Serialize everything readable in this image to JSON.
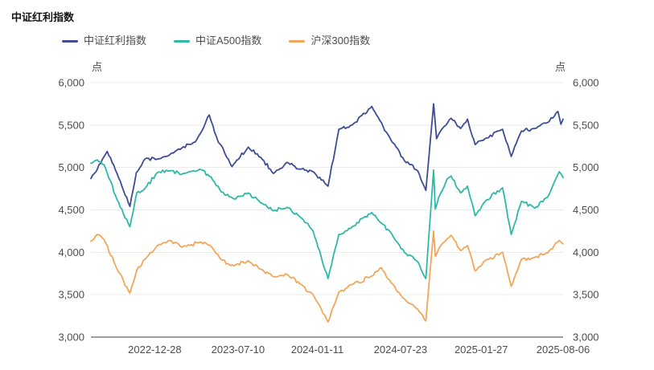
{
  "page": {
    "title": "中证红利指数"
  },
  "legend": {
    "items": [
      {
        "label": "中证红利指数",
        "color": "#3d4c94"
      },
      {
        "label": "中证A500指数",
        "color": "#2eb8a6"
      },
      {
        "label": "沪深300指数",
        "color": "#f2a65a"
      }
    ]
  },
  "axes": {
    "y_unit_left": "点",
    "y_unit_right": "点"
  },
  "chart_data": {
    "type": "line",
    "title": "中证红利指数",
    "grid": true,
    "legend_position": "top",
    "x_axis": {
      "range": [
        "2022-08-01",
        "2025-08-06"
      ],
      "ticks": [
        "2022-12-28",
        "2023-07-10",
        "2024-01-11",
        "2024-07-23",
        "2025-01-27",
        "2025-08-06"
      ]
    },
    "y_axis": {
      "unit": "点",
      "min": 3000,
      "max": 6000,
      "tick_step": 500,
      "tick_labels": [
        "6,000",
        "5,500",
        "5,000",
        "4,500",
        "4,000",
        "3,500",
        "3,000"
      ]
    },
    "series": [
      {
        "name": "中证红利指数",
        "color": "#3d4c94",
        "points": [
          [
            "2022-08-01",
            4870
          ],
          [
            "2022-09-08",
            5190
          ],
          [
            "2022-10-01",
            4930
          ],
          [
            "2022-10-31",
            4540
          ],
          [
            "2022-11-15",
            4940
          ],
          [
            "2022-12-05",
            5100
          ],
          [
            "2023-01-03",
            5100
          ],
          [
            "2023-02-01",
            5150
          ],
          [
            "2023-03-01",
            5230
          ],
          [
            "2023-04-01",
            5300
          ],
          [
            "2023-05-04",
            5620
          ],
          [
            "2023-05-25",
            5300
          ],
          [
            "2023-06-01",
            5260
          ],
          [
            "2023-06-26",
            5010
          ],
          [
            "2023-08-03",
            5240
          ],
          [
            "2023-09-01",
            5120
          ],
          [
            "2023-10-01",
            4930
          ],
          [
            "2023-11-01",
            5060
          ],
          [
            "2023-12-01",
            4980
          ],
          [
            "2024-01-01",
            4950
          ],
          [
            "2024-02-05",
            4780
          ],
          [
            "2024-03-01",
            5450
          ],
          [
            "2024-04-01",
            5500
          ],
          [
            "2024-05-17",
            5720
          ],
          [
            "2024-06-01",
            5590
          ],
          [
            "2024-07-01",
            5320
          ],
          [
            "2024-08-01",
            5080
          ],
          [
            "2024-09-01",
            4960
          ],
          [
            "2024-09-20",
            4730
          ],
          [
            "2024-10-08",
            5750
          ],
          [
            "2024-10-15",
            5340
          ],
          [
            "2024-11-01",
            5480
          ],
          [
            "2024-11-18",
            5580
          ],
          [
            "2024-12-10",
            5460
          ],
          [
            "2024-12-26",
            5570
          ],
          [
            "2025-01-13",
            5270
          ],
          [
            "2025-02-05",
            5340
          ],
          [
            "2025-03-18",
            5450
          ],
          [
            "2025-04-07",
            5130
          ],
          [
            "2025-05-01",
            5430
          ],
          [
            "2025-06-01",
            5460
          ],
          [
            "2025-07-01",
            5530
          ],
          [
            "2025-07-25",
            5660
          ],
          [
            "2025-08-01",
            5510
          ],
          [
            "2025-08-06",
            5570
          ]
        ]
      },
      {
        "name": "中证A500指数",
        "color": "#2eb8a6",
        "points": [
          [
            "2022-08-01",
            5050
          ],
          [
            "2022-08-16",
            5090
          ],
          [
            "2022-09-01",
            5030
          ],
          [
            "2022-10-01",
            4620
          ],
          [
            "2022-10-31",
            4300
          ],
          [
            "2022-11-16",
            4700
          ],
          [
            "2022-12-01",
            4730
          ],
          [
            "2023-01-03",
            4940
          ],
          [
            "2023-02-01",
            4960
          ],
          [
            "2023-03-01",
            4920
          ],
          [
            "2023-04-12",
            4980
          ],
          [
            "2023-05-08",
            4890
          ],
          [
            "2023-06-01",
            4710
          ],
          [
            "2023-07-01",
            4630
          ],
          [
            "2023-08-03",
            4700
          ],
          [
            "2023-09-01",
            4580
          ],
          [
            "2023-10-01",
            4490
          ],
          [
            "2023-11-01",
            4530
          ],
          [
            "2023-12-01",
            4420
          ],
          [
            "2024-01-01",
            4250
          ],
          [
            "2024-02-05",
            3690
          ],
          [
            "2024-03-01",
            4210
          ],
          [
            "2024-04-01",
            4300
          ],
          [
            "2024-05-17",
            4470
          ],
          [
            "2024-06-01",
            4380
          ],
          [
            "2024-07-01",
            4230
          ],
          [
            "2024-08-01",
            4000
          ],
          [
            "2024-09-01",
            3890
          ],
          [
            "2024-09-20",
            3690
          ],
          [
            "2024-10-08",
            4970
          ],
          [
            "2024-10-12",
            4510
          ],
          [
            "2024-10-20",
            4650
          ],
          [
            "2024-11-08",
            4860
          ],
          [
            "2024-11-18",
            4900
          ],
          [
            "2024-12-10",
            4700
          ],
          [
            "2024-12-26",
            4780
          ],
          [
            "2025-01-13",
            4430
          ],
          [
            "2025-02-05",
            4600
          ],
          [
            "2025-03-18",
            4760
          ],
          [
            "2025-04-07",
            4210
          ],
          [
            "2025-05-01",
            4600
          ],
          [
            "2025-06-01",
            4520
          ],
          [
            "2025-07-01",
            4650
          ],
          [
            "2025-07-28",
            4950
          ],
          [
            "2025-08-06",
            4880
          ]
        ]
      },
      {
        "name": "沪深300指数",
        "color": "#f2a65a",
        "points": [
          [
            "2022-08-01",
            4130
          ],
          [
            "2022-08-16",
            4210
          ],
          [
            "2022-09-01",
            4150
          ],
          [
            "2022-10-01",
            3800
          ],
          [
            "2022-10-31",
            3520
          ],
          [
            "2022-11-16",
            3790
          ],
          [
            "2022-12-05",
            3920
          ],
          [
            "2023-01-03",
            4080
          ],
          [
            "2023-02-01",
            4140
          ],
          [
            "2023-03-01",
            4060
          ],
          [
            "2023-04-12",
            4120
          ],
          [
            "2023-05-08",
            4070
          ],
          [
            "2023-06-01",
            3910
          ],
          [
            "2023-07-01",
            3840
          ],
          [
            "2023-08-03",
            3900
          ],
          [
            "2023-09-01",
            3800
          ],
          [
            "2023-10-01",
            3710
          ],
          [
            "2023-11-01",
            3740
          ],
          [
            "2023-12-01",
            3630
          ],
          [
            "2024-01-01",
            3500
          ],
          [
            "2024-02-05",
            3180
          ],
          [
            "2024-03-01",
            3530
          ],
          [
            "2024-04-01",
            3620
          ],
          [
            "2024-05-17",
            3720
          ],
          [
            "2024-06-08",
            3820
          ],
          [
            "2024-07-01",
            3640
          ],
          [
            "2024-07-23",
            3500
          ],
          [
            "2024-08-01",
            3450
          ],
          [
            "2024-09-01",
            3330
          ],
          [
            "2024-09-20",
            3190
          ],
          [
            "2024-10-08",
            4250
          ],
          [
            "2024-10-12",
            3950
          ],
          [
            "2024-10-20",
            4040
          ],
          [
            "2024-11-08",
            4160
          ],
          [
            "2024-11-18",
            4200
          ],
          [
            "2024-12-10",
            4020
          ],
          [
            "2024-12-26",
            4080
          ],
          [
            "2025-01-13",
            3780
          ],
          [
            "2025-02-05",
            3900
          ],
          [
            "2025-03-18",
            4000
          ],
          [
            "2025-04-07",
            3600
          ],
          [
            "2025-05-01",
            3920
          ],
          [
            "2025-06-01",
            3940
          ],
          [
            "2025-07-01",
            3990
          ],
          [
            "2025-07-28",
            4140
          ],
          [
            "2025-08-06",
            4100
          ]
        ]
      }
    ]
  }
}
